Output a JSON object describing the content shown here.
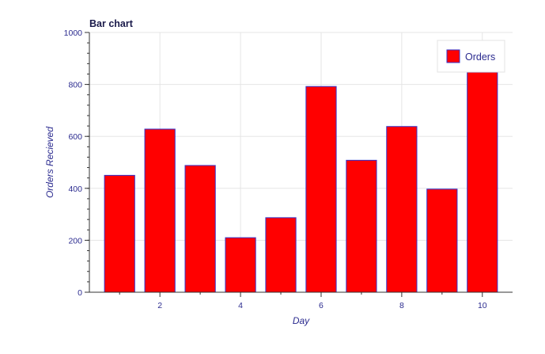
{
  "chart_data": {
    "type": "bar",
    "title": "Bar chart",
    "xlabel": "Day",
    "ylabel": "Orders Recieved",
    "x": [
      1,
      2,
      3,
      4,
      5,
      6,
      7,
      8,
      9,
      10
    ],
    "series": [
      {
        "name": "Orders",
        "values": [
          450,
          628,
          488,
          210,
          287,
          792,
          508,
          638,
          397,
          847
        ]
      }
    ],
    "xlim": [
      0.25,
      10.75
    ],
    "ylim": [
      0,
      1000
    ],
    "xticks": [
      "2",
      "4",
      "6",
      "8",
      "10"
    ],
    "yticks": [
      "0",
      "200",
      "400",
      "600",
      "800",
      "1000"
    ],
    "grid": true,
    "legend_position": "top-right",
    "colors": {
      "bar_fill": "#ff0000",
      "bar_stroke": "#3333cc",
      "text": "#2b2b8f",
      "title": "#1a1a4a",
      "grid": "#e5e5e5",
      "axis": "#333333"
    }
  }
}
